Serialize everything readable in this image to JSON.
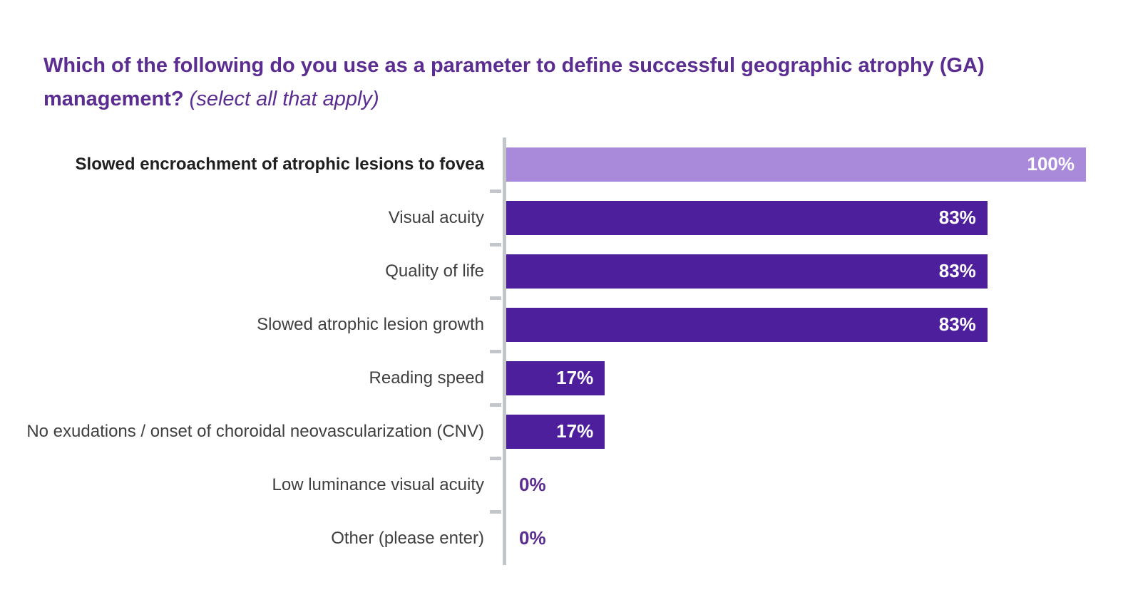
{
  "title": {
    "main": "Which of the following do you use as a parameter to define successful geographic atrophy (GA) management?",
    "note": "(select all that apply)"
  },
  "chart_data": {
    "type": "bar",
    "orientation": "horizontal",
    "title": "Which of the following do you use as a parameter to define successful geographic atrophy (GA) management? (select all that apply)",
    "categories": [
      "Slowed encroachment of atrophic lesions to fovea",
      "Visual acuity",
      "Quality of life",
      "Slowed atrophic lesion growth",
      "Reading speed",
      "No exudations / onset of choroidal neovascularization (CNV)",
      "Low luminance visual acuity",
      "Other (please enter)"
    ],
    "values": [
      100,
      83,
      83,
      83,
      17,
      17,
      0,
      0
    ],
    "value_labels": [
      "100%",
      "83%",
      "83%",
      "83%",
      "17%",
      "17%",
      "0%",
      "0%"
    ],
    "xlabel": "",
    "ylabel": "",
    "xlim": [
      0,
      100
    ],
    "grid": false,
    "legend": false,
    "highlight_index": 0,
    "colors": {
      "title": "#5b2d91",
      "bar": "#4e1f9d",
      "bar_highlight": "#a98ada",
      "value_inside": "#ffffff",
      "zero_label": "#5b2d91",
      "axis": "#c2c5ca",
      "category_text": "#3f3f3f"
    }
  }
}
